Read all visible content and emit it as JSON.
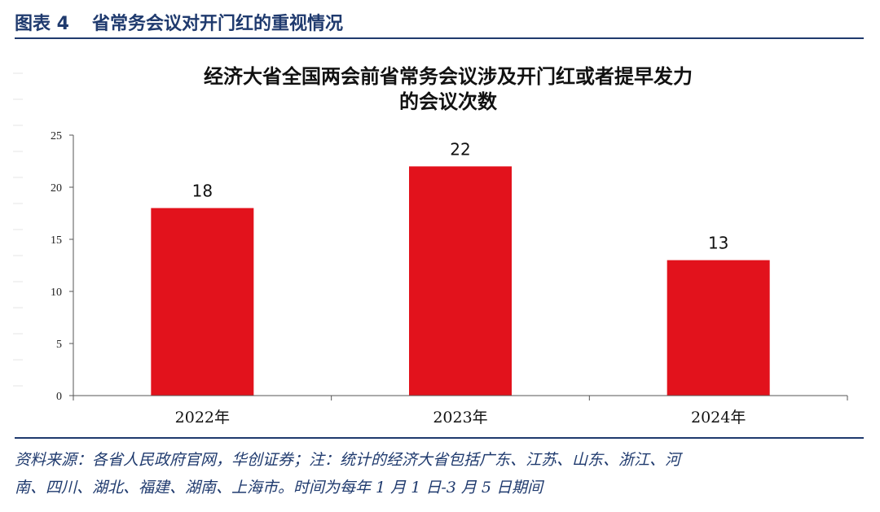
{
  "figure": {
    "label": "图表 4",
    "title": "省常务会议对开门红的重视情况"
  },
  "colors": {
    "accent": "#1f3a6e",
    "bar": "#e2121c"
  },
  "chart_data": {
    "type": "bar",
    "title_lines": [
      "经济大省全国两会前省常务会议涉及开门红或者提早发力",
      "的会议次数"
    ],
    "categories": [
      "2022年",
      "2023年",
      "2024年"
    ],
    "values": [
      18,
      22,
      13
    ],
    "data_labels": [
      "18",
      "22",
      "13"
    ],
    "ylim": [
      0,
      25
    ],
    "yticks": [
      0,
      5,
      10,
      15,
      20,
      25
    ],
    "ytick_labels": [
      "0",
      "5",
      "10",
      "15",
      "20",
      "25"
    ],
    "xlabel": "",
    "ylabel": "",
    "legend": "none",
    "grid": false
  },
  "source": {
    "line1": "资料来源：各省人民政府官网，华创证券；注：统计的经济大省包括广东、江苏、山东、浙江、河",
    "line2": "南、四川、湖北、福建、湖南、上海市。时间为每年 1 月 1 日-3 月 5 日期间"
  }
}
